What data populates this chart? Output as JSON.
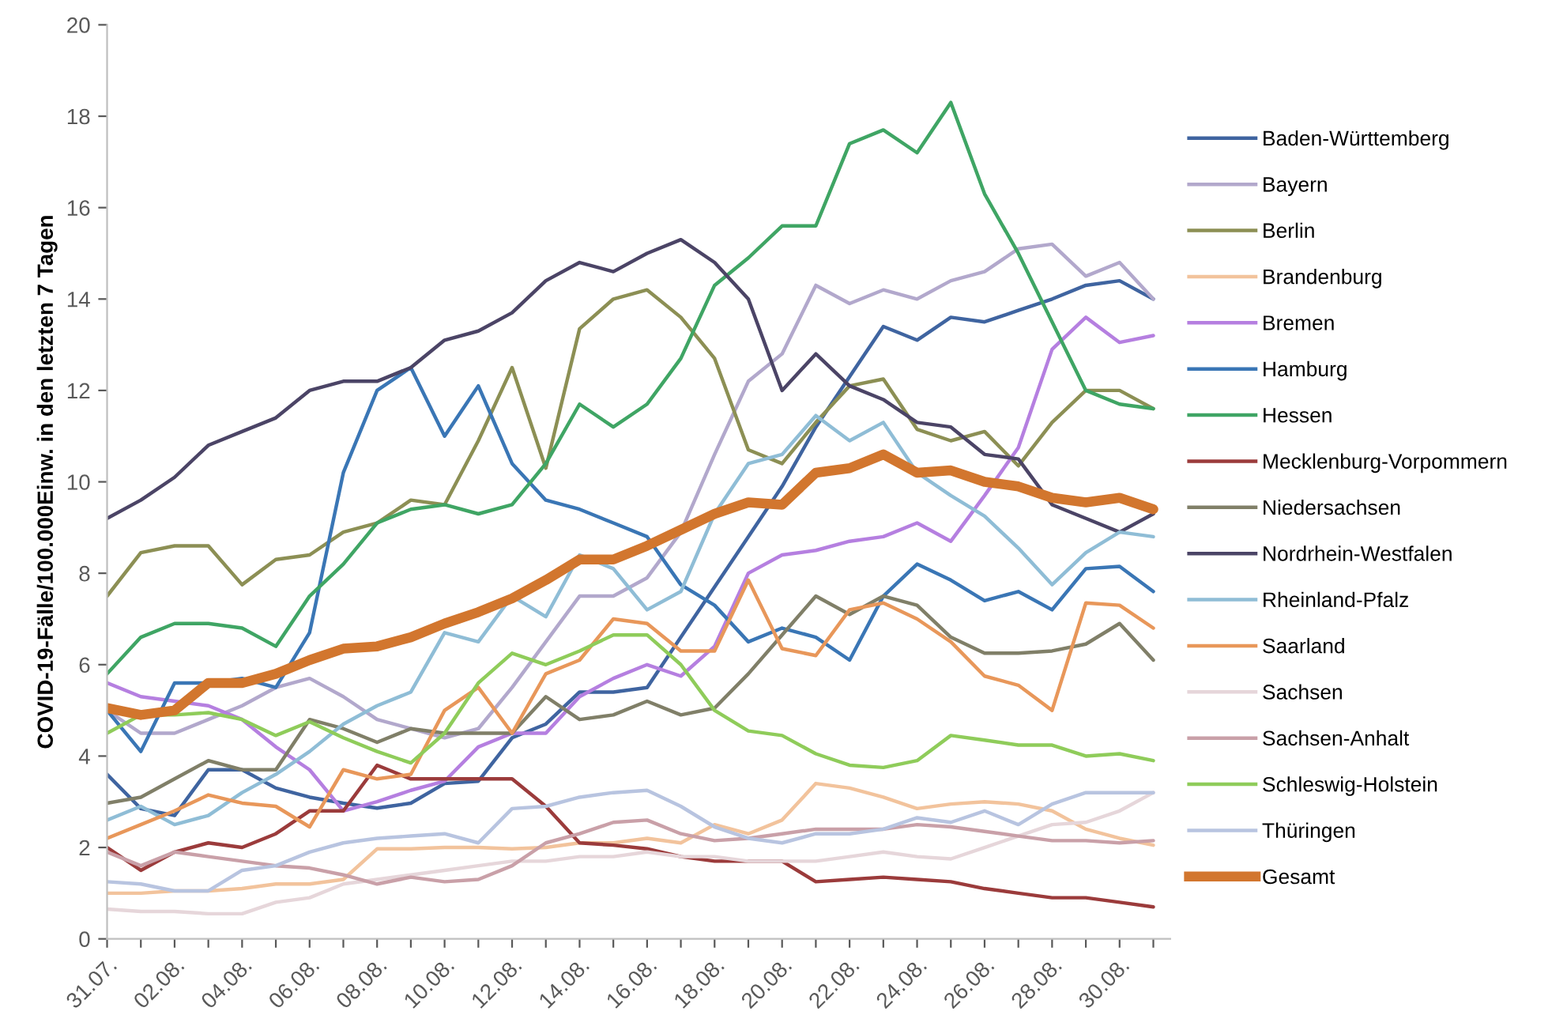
{
  "chart_data": {
    "type": "line",
    "ylabel": "COVID-19-Fälle/100.000Einw. in den letzten 7 Tagen",
    "categories": [
      "31.07.",
      null,
      "02.08.",
      null,
      "04.08.",
      null,
      "06.08.",
      null,
      "08.08.",
      null,
      "10.08.",
      null,
      "12.08.",
      null,
      "14.08.",
      null,
      "16.08.",
      null,
      "18.08.",
      null,
      "20.08.",
      null,
      "22.08.",
      null,
      "24.08.",
      null,
      "26.08.",
      null,
      "28.08.",
      null,
      "30.08.",
      null
    ],
    "ylim": [
      0,
      20
    ],
    "yticks": [
      0,
      2,
      4,
      6,
      8,
      10,
      12,
      14,
      16,
      18,
      20
    ],
    "grid": false,
    "legend": "right",
    "marker": "none",
    "line_style": "solid",
    "series": [
      {
        "name": "Baden-Württemberg",
        "color": "#3f64a0",
        "values": [
          3.6,
          2.85,
          2.7,
          3.7,
          3.7,
          3.3,
          3.1,
          2.97,
          2.86,
          2.97,
          3.4,
          3.45,
          4.4,
          4.7,
          5.4,
          5.4,
          5.5,
          6.6,
          7.7,
          8.8,
          9.9,
          11.2,
          12.3,
          13.4,
          13.1,
          13.6,
          13.5,
          13.75,
          14.0,
          14.3,
          14.4,
          14.0
        ]
      },
      {
        "name": "Bayern",
        "color": "#b2a8cc",
        "values": [
          5.0,
          4.5,
          4.5,
          4.8,
          5.1,
          5.5,
          5.7,
          5.3,
          4.8,
          4.6,
          4.4,
          4.6,
          5.5,
          6.5,
          7.5,
          7.5,
          7.9,
          8.9,
          10.6,
          12.2,
          12.8,
          14.3,
          13.9,
          14.2,
          14.0,
          14.4,
          14.6,
          15.1,
          15.2,
          14.5,
          14.8,
          14.0
        ]
      },
      {
        "name": "Berlin",
        "color": "#8c8f54",
        "values": [
          7.5,
          8.45,
          8.6,
          8.6,
          7.75,
          8.3,
          8.4,
          8.9,
          9.1,
          9.6,
          9.5,
          10.9,
          12.5,
          10.3,
          13.35,
          14.0,
          14.2,
          13.6,
          12.7,
          10.7,
          10.4,
          11.3,
          12.1,
          12.25,
          11.15,
          10.9,
          11.1,
          10.35,
          11.3,
          12.0,
          12.0,
          11.6
        ]
      },
      {
        "name": "Brandenburg",
        "color": "#f2c39c",
        "values": [
          1.0,
          1.0,
          1.05,
          1.05,
          1.1,
          1.2,
          1.2,
          1.3,
          1.97,
          1.97,
          2.0,
          2.0,
          1.97,
          2.0,
          2.1,
          2.1,
          2.2,
          2.1,
          2.5,
          2.3,
          2.6,
          3.4,
          3.3,
          3.1,
          2.85,
          2.95,
          3.0,
          2.95,
          2.8,
          2.4,
          2.2,
          2.05
        ]
      },
      {
        "name": "Bremen",
        "color": "#b57fe0",
        "values": [
          5.6,
          5.3,
          5.2,
          5.1,
          4.8,
          4.2,
          3.7,
          2.8,
          3.0,
          3.25,
          3.45,
          4.2,
          4.5,
          4.5,
          5.3,
          5.7,
          6.0,
          5.75,
          6.4,
          8.0,
          8.4,
          8.5,
          8.7,
          8.8,
          9.1,
          8.7,
          9.7,
          10.75,
          12.9,
          13.6,
          13.05,
          13.2
        ]
      },
      {
        "name": "Hamburg",
        "color": "#3a76b5",
        "values": [
          5.0,
          4.1,
          5.6,
          5.6,
          5.7,
          5.5,
          6.7,
          10.2,
          12.0,
          12.5,
          11.0,
          12.1,
          10.4,
          9.6,
          9.4,
          9.1,
          8.8,
          7.75,
          7.3,
          6.5,
          6.8,
          6.6,
          6.1,
          7.5,
          8.2,
          7.85,
          7.4,
          7.6,
          7.2,
          8.1,
          8.15,
          7.6
        ]
      },
      {
        "name": "Hessen",
        "color": "#3fa564",
        "values": [
          5.8,
          6.6,
          6.9,
          6.9,
          6.8,
          6.4,
          7.5,
          8.2,
          9.1,
          9.4,
          9.5,
          9.3,
          9.5,
          10.4,
          11.7,
          11.2,
          11.7,
          12.7,
          14.3,
          14.9,
          15.6,
          15.6,
          17.4,
          17.7,
          17.2,
          18.3,
          16.3,
          15.0,
          13.5,
          12.0,
          11.7,
          11.6
        ]
      },
      {
        "name": "Mecklenburg-Vorpommern",
        "color": "#9b3b3b",
        "values": [
          2.0,
          1.5,
          1.9,
          2.1,
          2.0,
          2.3,
          2.8,
          2.8,
          3.8,
          3.5,
          3.5,
          3.5,
          3.5,
          2.9,
          2.1,
          2.05,
          1.97,
          1.8,
          1.7,
          1.7,
          1.7,
          1.25,
          1.3,
          1.35,
          1.3,
          1.25,
          1.1,
          1.0,
          0.9,
          0.9,
          0.8,
          0.7
        ]
      },
      {
        "name": "Niedersachsen",
        "color": "#807f68",
        "values": [
          2.97,
          3.1,
          3.5,
          3.9,
          3.7,
          3.7,
          4.8,
          4.6,
          4.3,
          4.6,
          4.5,
          4.5,
          4.5,
          5.3,
          4.8,
          4.9,
          5.2,
          4.9,
          5.05,
          5.8,
          6.65,
          7.5,
          7.1,
          7.5,
          7.3,
          6.6,
          6.25,
          6.25,
          6.3,
          6.45,
          6.9,
          6.1
        ]
      },
      {
        "name": "Nordrhein-Westfalen",
        "color": "#4b4466",
        "values": [
          9.2,
          9.6,
          10.1,
          10.8,
          11.1,
          11.4,
          12.0,
          12.2,
          12.2,
          12.5,
          13.1,
          13.3,
          13.7,
          14.4,
          14.8,
          14.6,
          15.0,
          15.3,
          14.8,
          14.0,
          12.0,
          12.8,
          12.1,
          11.8,
          11.3,
          11.2,
          10.6,
          10.5,
          9.5,
          9.2,
          8.9,
          9.3
        ]
      },
      {
        "name": "Rheinland-Pfalz",
        "color": "#8fbdd6",
        "values": [
          2.6,
          2.9,
          2.5,
          2.7,
          3.2,
          3.6,
          4.1,
          4.7,
          5.1,
          5.4,
          6.7,
          6.5,
          7.5,
          7.05,
          8.4,
          8.1,
          7.2,
          7.6,
          9.3,
          10.4,
          10.6,
          11.45,
          10.9,
          11.3,
          10.2,
          9.7,
          9.25,
          8.55,
          7.75,
          8.45,
          8.9,
          8.8
        ]
      },
      {
        "name": "Saarland",
        "color": "#e8975a",
        "values": [
          2.2,
          2.5,
          2.8,
          3.15,
          2.97,
          2.9,
          2.45,
          3.7,
          3.5,
          3.6,
          5.0,
          5.5,
          4.5,
          5.8,
          6.1,
          7.0,
          6.9,
          6.3,
          6.3,
          7.85,
          6.35,
          6.2,
          7.2,
          7.35,
          7.0,
          6.5,
          5.75,
          5.55,
          5.0,
          7.35,
          7.3,
          6.8
        ]
      },
      {
        "name": "Sachsen",
        "color": "#e6d6da",
        "values": [
          0.65,
          0.6,
          0.6,
          0.55,
          0.55,
          0.8,
          0.9,
          1.2,
          1.3,
          1.4,
          1.5,
          1.6,
          1.7,
          1.7,
          1.8,
          1.8,
          1.9,
          1.8,
          1.8,
          1.7,
          1.7,
          1.7,
          1.8,
          1.9,
          1.8,
          1.75,
          2.0,
          2.25,
          2.5,
          2.55,
          2.8,
          3.2
        ]
      },
      {
        "name": "Sachsen-Anhalt",
        "color": "#c9a0a8",
        "values": [
          1.9,
          1.6,
          1.9,
          1.8,
          1.7,
          1.6,
          1.55,
          1.4,
          1.2,
          1.35,
          1.25,
          1.3,
          1.6,
          2.1,
          2.3,
          2.55,
          2.6,
          2.3,
          2.15,
          2.2,
          2.3,
          2.4,
          2.4,
          2.4,
          2.5,
          2.45,
          2.35,
          2.25,
          2.15,
          2.15,
          2.1,
          2.15
        ]
      },
      {
        "name": "Schleswig-Holstein",
        "color": "#8fcc5a",
        "values": [
          4.5,
          4.9,
          4.9,
          4.95,
          4.8,
          4.45,
          4.75,
          4.4,
          4.1,
          3.85,
          4.5,
          5.6,
          6.25,
          6.0,
          6.3,
          6.65,
          6.65,
          6.0,
          5.0,
          4.55,
          4.45,
          4.05,
          3.8,
          3.75,
          3.9,
          4.45,
          4.35,
          4.24,
          4.24,
          4.0,
          4.05,
          3.9
        ]
      },
      {
        "name": "Thüringen",
        "color": "#b8c4e0",
        "values": [
          1.25,
          1.2,
          1.05,
          1.05,
          1.5,
          1.6,
          1.9,
          2.1,
          2.2,
          2.25,
          2.3,
          2.1,
          2.85,
          2.9,
          3.1,
          3.2,
          3.25,
          2.9,
          2.45,
          2.2,
          2.1,
          2.3,
          2.3,
          2.4,
          2.65,
          2.55,
          2.8,
          2.5,
          2.95,
          3.2,
          3.2,
          3.2
        ]
      },
      {
        "name": "Gesamt",
        "color": "#d2762e",
        "values": [
          5.05,
          4.9,
          5.0,
          5.6,
          5.6,
          5.8,
          6.1,
          6.35,
          6.4,
          6.6,
          6.9,
          7.15,
          7.45,
          7.85,
          8.3,
          8.3,
          8.6,
          8.95,
          9.3,
          9.55,
          9.5,
          10.2,
          10.3,
          10.6,
          10.2,
          10.25,
          10.0,
          9.9,
          9.65,
          9.55,
          9.65,
          9.4
        ]
      }
    ]
  }
}
